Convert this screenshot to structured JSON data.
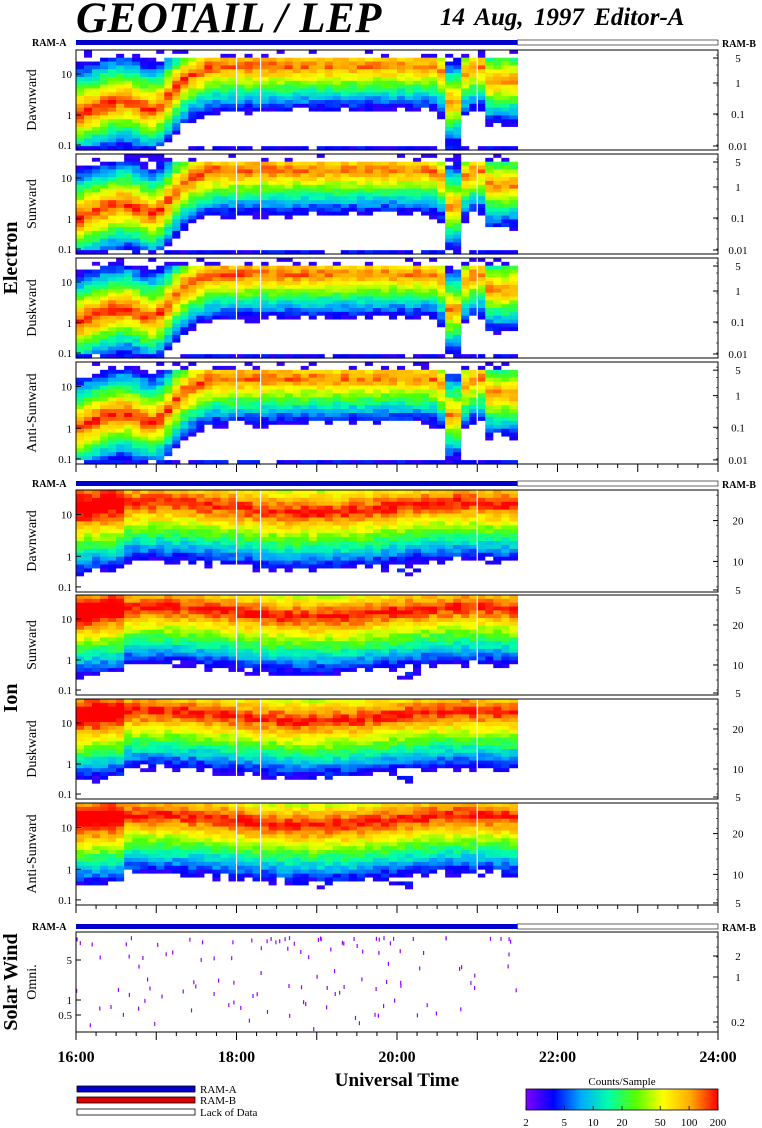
{
  "header": {
    "title": "GEOTAIL / LEP",
    "date_editor": "14 Aug, 1997   Editor-A"
  },
  "chart_data": {
    "type": "heatmap",
    "title": "GEOTAIL / LEP",
    "subtitle": "14 Aug, 1997   Editor-A",
    "xlabel": "Universal Time",
    "x_ticks": [
      "16:00",
      "18:00",
      "20:00",
      "22:00",
      "24:00"
    ],
    "x_range_hours": [
      16,
      24
    ],
    "data_end_hour": 21.5,
    "ram_labels": {
      "left": "RAM-A",
      "right": "RAM-B"
    },
    "groups": [
      {
        "name": "Electron",
        "panels": [
          {
            "label": "Dawnward",
            "left_ticks": [
              "10",
              "1",
              "0.1"
            ],
            "right_ticks": [
              "5",
              "1",
              "0.1",
              "0.01"
            ]
          },
          {
            "label": "Sunward",
            "left_ticks": [
              "10",
              "1",
              "0.1"
            ],
            "right_ticks": [
              "5",
              "1",
              "0.1",
              "0.01"
            ]
          },
          {
            "label": "Duskward",
            "left_ticks": [
              "10",
              "1",
              "0.1"
            ],
            "right_ticks": [
              "5",
              "1",
              "0.1",
              "0.01"
            ]
          },
          {
            "label": "Anti-Sunward",
            "left_ticks": [
              "10",
              "1",
              "0.1"
            ],
            "right_ticks": [
              "5",
              "1",
              "0.1",
              "0.01"
            ]
          }
        ]
      },
      {
        "name": "Ion",
        "panels": [
          {
            "label": "Dawnward",
            "left_ticks": [
              "10",
              "1",
              "0.1"
            ],
            "right_ticks": [
              "20",
              "10",
              "5"
            ]
          },
          {
            "label": "Sunward",
            "left_ticks": [
              "10",
              "1",
              "0.1"
            ],
            "right_ticks": [
              "20",
              "10",
              "5"
            ]
          },
          {
            "label": "Duskward",
            "left_ticks": [
              "10",
              "1",
              "0.1"
            ],
            "right_ticks": [
              "20",
              "10",
              "5"
            ]
          },
          {
            "label": "Anti-Sunward",
            "left_ticks": [
              "10",
              "1",
              "0.1"
            ],
            "right_ticks": [
              "20",
              "10",
              "5"
            ]
          }
        ]
      },
      {
        "name": "Solar Wind",
        "panels": [
          {
            "label": "Omni.",
            "left_ticks": [
              "5",
              "1",
              "0.5"
            ],
            "right_ticks": [
              "2",
              "1",
              "0.2"
            ]
          }
        ]
      }
    ],
    "legend": {
      "entries": [
        {
          "label": "RAM-A",
          "color": "#0000cc"
        },
        {
          "label": "RAM-B",
          "color": "#dd0000"
        },
        {
          "label": "Lack of Data",
          "color": "#ffffff"
        }
      ]
    },
    "colorbar": {
      "title": "Counts/Sample",
      "ticks": [
        "2",
        "5",
        "10",
        "20",
        "50",
        "100",
        "200"
      ],
      "range": [
        2,
        200
      ],
      "scale": "log",
      "colors": [
        "#7f00ff",
        "#0000ff",
        "#00aaff",
        "#00ffaa",
        "#55ff00",
        "#ffff00",
        "#ffaa00",
        "#ff0000"
      ]
    }
  }
}
